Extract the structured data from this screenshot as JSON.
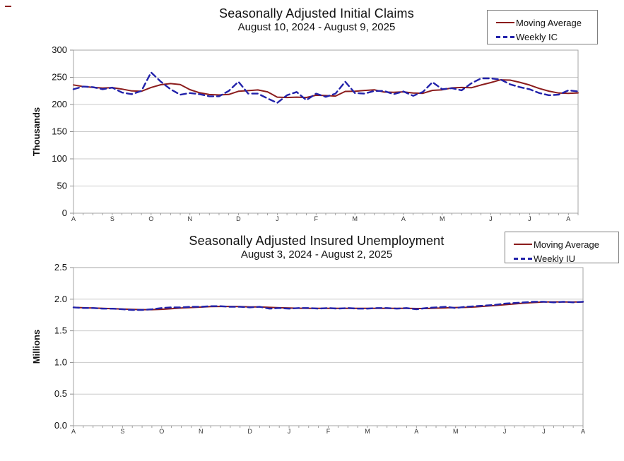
{
  "colors": {
    "moving_average": "#8b1c1c",
    "weekly": "#2222aa",
    "plot_border": "#a6a6a6",
    "gridline": "#c9c9c9",
    "tick": "#8c8c8c",
    "month_label": "#333333"
  },
  "chart_data": [
    {
      "type": "line",
      "title": "Seasonally Adjusted Initial Claims",
      "subtitle": "August 10, 2024 - August 9, 2025",
      "ylabel": "Thousands",
      "ylim": [
        0,
        300
      ],
      "y_tick_labels": [
        "300",
        "250",
        "200",
        "150",
        "100",
        "50",
        "0"
      ],
      "grid": true,
      "legend_position": "top-right",
      "weeks": 53,
      "x_month_labels": [
        "A",
        "S",
        "O",
        "N",
        "D",
        "J",
        "F",
        "M",
        "A",
        "M",
        "J",
        "J",
        "A"
      ],
      "x_month_week_index": [
        0,
        4,
        8,
        12,
        17,
        21,
        25,
        29,
        34,
        38,
        43,
        47,
        51
      ],
      "series": [
        {
          "name": "Moving Average",
          "style": "solid",
          "color": "#8b1c1c",
          "values": [
            236,
            233,
            231.5,
            230.3,
            231,
            228.3,
            225,
            224.3,
            231.3,
            236.3,
            238.5,
            236.8,
            227.3,
            221.5,
            218.3,
            217.5,
            218.5,
            224.3,
            225.5,
            226.8,
            223.3,
            213.5,
            212.8,
            213.5,
            212.8,
            217,
            216.3,
            215.5,
            224,
            224.3,
            225.8,
            227,
            222.8,
            222.3,
            223.3,
            221,
            220.5,
            226,
            227,
            230.5,
            231.3,
            230.8,
            235.8,
            240.3,
            245.3,
            244.8,
            240.8,
            235.8,
            229.5,
            224.5,
            221,
            220.5,
            221.3
          ]
        },
        {
          "name": "Weekly IC",
          "style": "dashed",
          "color": "#2222aa",
          "values": [
            228,
            233,
            232,
            228,
            231,
            222,
            219,
            225,
            259,
            242,
            228,
            218,
            221,
            219,
            215,
            215,
            225,
            242,
            220,
            220,
            211,
            203,
            217,
            223,
            208,
            220,
            214,
            220,
            242,
            221,
            220,
            225,
            225,
            219,
            224,
            216,
            223,
            241,
            228,
            230,
            226,
            239,
            248,
            248,
            246,
            237,
            232,
            228,
            221,
            217,
            218,
            226,
            224
          ]
        }
      ]
    },
    {
      "type": "line",
      "title": "Seasonally Adjusted Insured Unemployment",
      "subtitle": "August 3, 2024 - August 2, 2025",
      "ylabel": "Millions",
      "ylim": [
        0,
        2.5
      ],
      "y_tick_labels": [
        "2.5",
        "2.0",
        "1.5",
        "1.0",
        "0.5",
        "0.0"
      ],
      "grid": true,
      "legend_position": "top-right",
      "weeks": 53,
      "x_month_labels": [
        "A",
        "S",
        "O",
        "N",
        "D",
        "J",
        "F",
        "M",
        "A",
        "M",
        "J",
        "J",
        "A"
      ],
      "x_month_week_index": [
        0,
        5,
        9,
        13,
        18,
        22,
        26,
        30,
        35,
        39,
        44,
        48,
        52
      ],
      "series": [
        {
          "name": "Moving Average",
          "style": "solid",
          "color": "#8b1c1c",
          "values": [
            1.87,
            1.865,
            1.86,
            1.855,
            1.85,
            1.845,
            1.838,
            1.835,
            1.835,
            1.84,
            1.85,
            1.86,
            1.868,
            1.875,
            1.883,
            1.885,
            1.885,
            1.883,
            1.878,
            1.877,
            1.87,
            1.865,
            1.86,
            1.857,
            1.855,
            1.855,
            1.855,
            1.855,
            1.855,
            1.855,
            1.855,
            1.855,
            1.856,
            1.855,
            1.855,
            1.853,
            1.853,
            1.858,
            1.863,
            1.868,
            1.87,
            1.878,
            1.888,
            1.9,
            1.913,
            1.925,
            1.938,
            1.948,
            1.955,
            1.958,
            1.957,
            1.955,
            1.957
          ]
        },
        {
          "name": "Weekly IU",
          "style": "dashed",
          "color": "#2222aa",
          "values": [
            1.87,
            1.86,
            1.86,
            1.85,
            1.85,
            1.84,
            1.83,
            1.83,
            1.84,
            1.86,
            1.87,
            1.87,
            1.88,
            1.88,
            1.89,
            1.89,
            1.88,
            1.88,
            1.87,
            1.88,
            1.85,
            1.86,
            1.85,
            1.86,
            1.86,
            1.85,
            1.86,
            1.85,
            1.86,
            1.85,
            1.85,
            1.86,
            1.86,
            1.85,
            1.86,
            1.84,
            1.86,
            1.87,
            1.88,
            1.86,
            1.88,
            1.89,
            1.9,
            1.91,
            1.93,
            1.94,
            1.95,
            1.96,
            1.96,
            1.95,
            1.96,
            1.95,
            1.96
          ]
        }
      ]
    }
  ]
}
